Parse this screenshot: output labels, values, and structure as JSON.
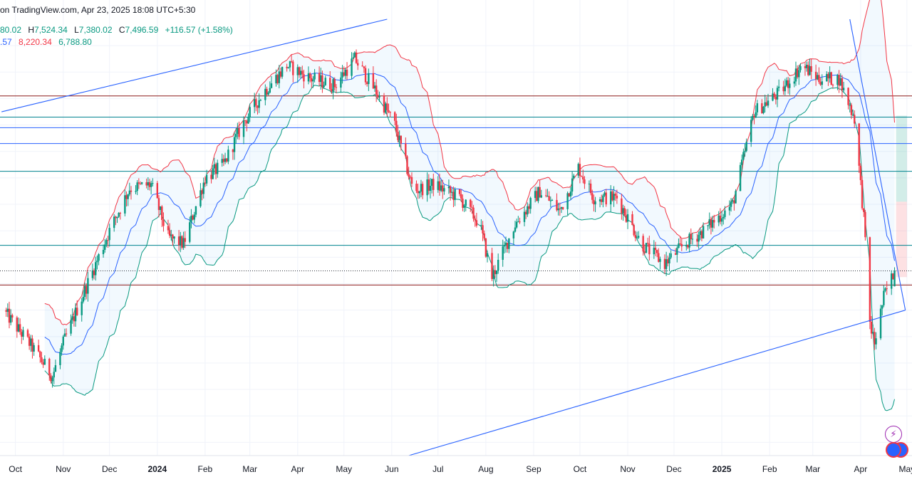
{
  "header": {
    "source": "on TradingView.com, Apr 23, 2025 18:08 UTC+5:30",
    "ohlc": {
      "open": "80.02",
      "high_label": "H",
      "high": "7,524.34",
      "low_label": "L",
      "low": "7,380.02",
      "close_label": "C",
      "close": "7,496.59",
      "change": "+116.57 (+1.58%)"
    },
    "bollinger": {
      "basis": ".57",
      "upper": "8,220.34",
      "lower": "6,788.80"
    }
  },
  "colors": {
    "up": "#089981",
    "down": "#f23645",
    "basis": "#2962ff",
    "upper": "#f23645",
    "lower": "#089981",
    "band_fill": "#2196f3",
    "trendline": "#2962ff",
    "support_resistance": "#8b1a1a",
    "level_teal": "#00838f"
  },
  "chart_data": {
    "type": "candlestick",
    "timeframe": "daily",
    "price_range": [
      6100,
      9400
    ],
    "x_ticks": [
      {
        "label": "Oct",
        "bold": false,
        "date": "2023-10-01"
      },
      {
        "label": "Nov",
        "bold": false,
        "date": "2023-11-01"
      },
      {
        "label": "Dec",
        "bold": false,
        "date": "2023-12-01"
      },
      {
        "label": "2024",
        "bold": true,
        "date": "2024-01-01"
      },
      {
        "label": "Feb",
        "bold": false,
        "date": "2024-02-01"
      },
      {
        "label": "Mar",
        "bold": false,
        "date": "2024-03-01"
      },
      {
        "label": "Apr",
        "bold": false,
        "date": "2024-04-01"
      },
      {
        "label": "May",
        "bold": false,
        "date": "2024-05-01"
      },
      {
        "label": "Jun",
        "bold": false,
        "date": "2024-06-01"
      },
      {
        "label": "Jul",
        "bold": false,
        "date": "2024-07-01"
      },
      {
        "label": "Aug",
        "bold": false,
        "date": "2024-08-01"
      },
      {
        "label": "Sep",
        "bold": false,
        "date": "2024-09-01"
      },
      {
        "label": "Oct",
        "bold": false,
        "date": "2024-10-01"
      },
      {
        "label": "Nov",
        "bold": false,
        "date": "2024-11-01"
      },
      {
        "label": "Dec",
        "bold": false,
        "date": "2024-12-01"
      },
      {
        "label": "2025",
        "bold": true,
        "date": "2025-01-01"
      },
      {
        "label": "Feb",
        "bold": false,
        "date": "2025-02-01"
      },
      {
        "label": "Mar",
        "bold": false,
        "date": "2025-03-01"
      },
      {
        "label": "Apr",
        "bold": false,
        "date": "2025-04-01"
      },
      {
        "label": "May",
        "bold": false,
        "date": "2025-05-01"
      }
    ],
    "price_path": [
      [
        "2023-09-23",
        7200
      ],
      [
        "2023-10-10",
        6950
      ],
      [
        "2023-10-25",
        6700
      ],
      [
        "2023-11-01",
        6950
      ],
      [
        "2023-11-15",
        7350
      ],
      [
        "2023-12-01",
        7800
      ],
      [
        "2023-12-14",
        8120
      ],
      [
        "2023-12-28",
        8150
      ],
      [
        "2024-01-08",
        7750
      ],
      [
        "2024-01-18",
        7700
      ],
      [
        "2024-02-01",
        8200
      ],
      [
        "2024-02-13",
        8300
      ],
      [
        "2024-02-25",
        8600
      ],
      [
        "2024-03-10",
        8850
      ],
      [
        "2024-03-25",
        9050
      ],
      [
        "2024-04-10",
        8950
      ],
      [
        "2024-04-25",
        8900
      ],
      [
        "2024-05-08",
        9100
      ],
      [
        "2024-05-22",
        8850
      ],
      [
        "2024-06-03",
        8600
      ],
      [
        "2024-06-15",
        8100
      ],
      [
        "2024-06-28",
        8150
      ],
      [
        "2024-07-15",
        8050
      ],
      [
        "2024-07-28",
        7850
      ],
      [
        "2024-08-05",
        7450
      ],
      [
        "2024-08-20",
        7850
      ],
      [
        "2024-09-05",
        8100
      ],
      [
        "2024-09-18",
        7950
      ],
      [
        "2024-09-30",
        8280
      ],
      [
        "2024-10-10",
        8050
      ],
      [
        "2024-10-25",
        8050
      ],
      [
        "2024-11-10",
        7700
      ],
      [
        "2024-11-25",
        7550
      ],
      [
        "2024-12-08",
        7700
      ],
      [
        "2024-12-20",
        7800
      ],
      [
        "2025-01-08",
        8000
      ],
      [
        "2025-01-22",
        8700
      ],
      [
        "2025-02-08",
        8850
      ],
      [
        "2025-02-22",
        9050
      ],
      [
        "2025-03-05",
        8950
      ],
      [
        "2025-03-18",
        8950
      ],
      [
        "2025-03-28",
        8650
      ],
      [
        "2025-04-03",
        7900
      ],
      [
        "2025-04-07",
        7100
      ],
      [
        "2025-04-10",
        6950
      ],
      [
        "2025-04-16",
        7300
      ],
      [
        "2025-04-23",
        7496.59
      ]
    ],
    "bollinger_bands": {
      "basis": ".57",
      "upper": 8220.34,
      "lower": 6788.8
    },
    "horizontal_levels": [
      {
        "price": 8820,
        "style": "solid",
        "color": "#8b1a1a"
      },
      {
        "price": 8660,
        "style": "solid",
        "color": "#00838f"
      },
      {
        "price": 8580,
        "style": "solid",
        "color": "#2962ff"
      },
      {
        "price": 8460,
        "style": "solid",
        "color": "#2962ff"
      },
      {
        "price": 8250,
        "style": "solid",
        "color": "#00838f"
      },
      {
        "price": 7690,
        "style": "solid",
        "color": "#00838f"
      },
      {
        "price": 7390,
        "style": "solid",
        "color": "#8b1a1a"
      },
      {
        "price": 7496.59,
        "style": "dotted",
        "color": "#131722"
      }
    ],
    "trendlines": [
      {
        "from": [
          "2023-09-22",
          8700
        ],
        "to": [
          "2024-05-29",
          9400
        ]
      },
      {
        "from": [
          "2024-06-12",
          6100
        ],
        "to": [
          "2025-04-30",
          7200
        ]
      },
      {
        "from": [
          "2025-03-25",
          9400
        ],
        "to": [
          "2025-04-30",
          7200
        ]
      }
    ],
    "position_tool": {
      "date_from": "2025-04-24",
      "date_to": "2025-05-01",
      "entry": 8020,
      "take_profit": 8670,
      "stop_loss": 7450
    }
  }
}
